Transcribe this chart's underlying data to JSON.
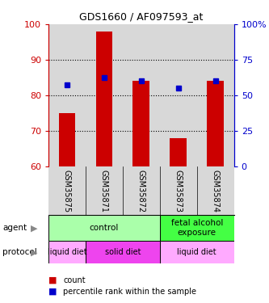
{
  "title": "GDS1660 / AF097593_at",
  "samples": [
    "GSM35875",
    "GSM35871",
    "GSM35872",
    "GSM35873",
    "GSM35874"
  ],
  "bar_tops": [
    75,
    98,
    84,
    68,
    84
  ],
  "bar_base": 60,
  "bar_color": "#cc0000",
  "dot_values": [
    83,
    85,
    84,
    82,
    84
  ],
  "dot_color": "#0000cc",
  "ylim_left": [
    60,
    100
  ],
  "yticks_left": [
    60,
    70,
    80,
    90,
    100
  ],
  "ylim_right": [
    0,
    100
  ],
  "yticks_right": [
    0,
    25,
    50,
    75,
    100
  ],
  "yticklabels_right": [
    "0",
    "25",
    "50",
    "75",
    "100%"
  ],
  "agent_groups": [
    {
      "label": "control",
      "span": [
        0,
        3
      ],
      "color": "#aaffaa"
    },
    {
      "label": "fetal alcohol\nexposure",
      "span": [
        3,
        5
      ],
      "color": "#44ff44"
    }
  ],
  "protocol_groups": [
    {
      "label": "liquid diet",
      "span": [
        0,
        1
      ],
      "color": "#ffaaff"
    },
    {
      "label": "solid diet",
      "span": [
        1,
        3
      ],
      "color": "#ee44ee"
    },
    {
      "label": "liquid diet",
      "span": [
        3,
        5
      ],
      "color": "#ffaaff"
    }
  ],
  "legend_count_color": "#cc0000",
  "legend_dot_color": "#0000cc",
  "left_axis_color": "#cc0000",
  "right_axis_color": "#0000cc",
  "background_color": "#ffffff",
  "plot_bg_color": "#d8d8d8"
}
